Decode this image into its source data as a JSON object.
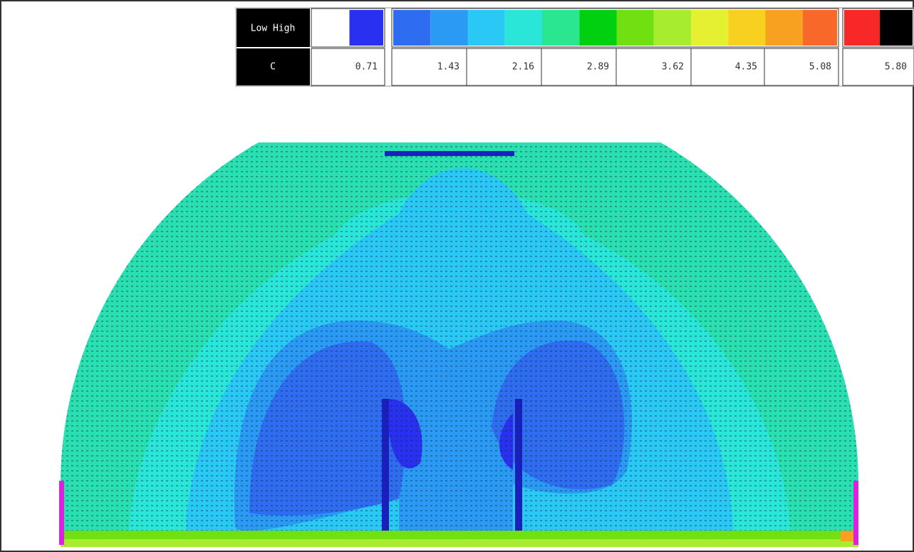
{
  "legend": {
    "header": "Low High",
    "variable": "C",
    "values": [
      "0.71",
      "1.43",
      "2.16",
      "2.89",
      "3.62",
      "4.35",
      "5.08",
      "5.80"
    ]
  }
}
